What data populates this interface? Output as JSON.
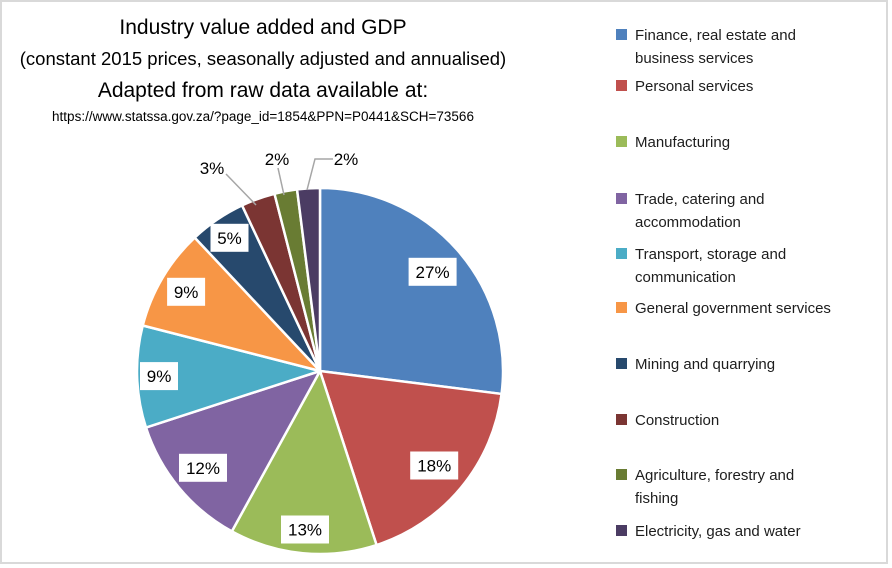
{
  "title_block": {
    "title": "Industry value added and GDP",
    "subtitle": "(constant 2015 prices, seasonally adjusted and annualised)",
    "adapted_note": "Adapted from raw data available at:",
    "source_url": "https://www.statssa.gov.za/?page_id=1854&PPN=P0441&SCH=73566"
  },
  "chart_data": {
    "type": "pie",
    "title": "Industry value added and GDP",
    "subtitle": "(constant 2015 prices, seasonally adjusted and annualised)",
    "source_note": "Adapted from raw data available at:",
    "source_url": "https://www.statssa.gov.za/?page_id=1854&PPN=P0441&SCH=73566",
    "unit": "percent of total",
    "start_angle_deg": 0,
    "direction": "clockwise",
    "legend_position": "right",
    "data_labels": "percentage; small slices labeled outside with leader lines",
    "slices": [
      {
        "name": "Finance, real estate and business services",
        "legend_lines": [
          "Finance, real estate and",
          "business services"
        ],
        "value": 27,
        "data_label": "27%",
        "color": "#4F81BD",
        "label_placement": "inside"
      },
      {
        "name": "Personal services",
        "legend_lines": [
          "Personal services"
        ],
        "value": 18,
        "data_label": "18%",
        "color": "#C0504D",
        "label_placement": "inside"
      },
      {
        "name": "Manufacturing",
        "legend_lines": [
          "Manufacturing"
        ],
        "value": 13,
        "data_label": "13%",
        "color": "#9BBB59",
        "label_placement": "inside"
      },
      {
        "name": "Trade, catering and accommodation",
        "legend_lines": [
          "Trade, catering and",
          "accommodation"
        ],
        "value": 12,
        "data_label": "12%",
        "color": "#8064A2",
        "label_placement": "inside"
      },
      {
        "name": "Transport, storage and communication",
        "legend_lines": [
          "Transport, storage and",
          "communication"
        ],
        "value": 9,
        "data_label": "9%",
        "color": "#4BACC6",
        "label_placement": "inside"
      },
      {
        "name": "General government services",
        "legend_lines": [
          "General government services"
        ],
        "value": 9,
        "data_label": "9%",
        "color": "#F79646",
        "label_placement": "inside"
      },
      {
        "name": "Mining and quarrying",
        "legend_lines": [
          "Mining and quarrying"
        ],
        "value": 5,
        "data_label": "5%",
        "color": "#27496D",
        "label_placement": "inside"
      },
      {
        "name": "Construction",
        "legend_lines": [
          "Construction"
        ],
        "value": 3,
        "data_label": "3%",
        "color": "#7B3533",
        "label_placement": "outside"
      },
      {
        "name": "Agriculture, forestry and fishing",
        "legend_lines": [
          "Agriculture, forestry and",
          "fishing"
        ],
        "value": 2,
        "data_label": "2%",
        "color": "#697C33",
        "label_placement": "outside"
      },
      {
        "name": "Electricity, gas and water",
        "legend_lines": [
          "Electricity, gas and water"
        ],
        "value": 2,
        "data_label": "2%",
        "color": "#4B3C63",
        "label_placement": "outside"
      }
    ]
  },
  "style": {
    "frame_border": "#D9D9D9",
    "slice_stroke": "#FFFFFF",
    "leader_line": "#A6A6A6",
    "label_box_bg": "#FFFFFF",
    "title_text": "#000000",
    "legend_text": "#1d1d1d"
  }
}
